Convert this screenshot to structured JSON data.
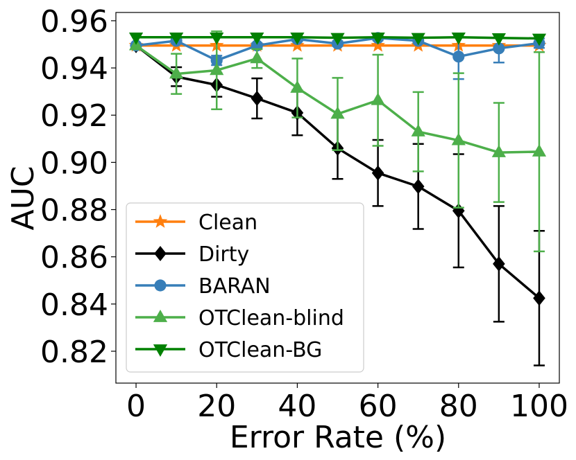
{
  "chart_data": {
    "type": "line",
    "title": "",
    "xlabel": "Error Rate (%)",
    "ylabel": "AUC",
    "xlim": [
      -5,
      105
    ],
    "ylim": [
      0.8065,
      0.9635
    ],
    "xticks": [
      0,
      20,
      40,
      60,
      80,
      100
    ],
    "yticks": [
      0.82,
      0.84,
      0.86,
      0.88,
      0.9,
      0.92,
      0.94,
      0.96
    ],
    "ytick_labels": [
      "0.82",
      "0.84",
      "0.86",
      "0.88",
      "0.90",
      "0.92",
      "0.94",
      "0.96"
    ],
    "grid": false,
    "legend_position": "lower-left",
    "x": [
      0,
      10,
      20,
      30,
      40,
      50,
      60,
      70,
      80,
      90,
      100
    ],
    "series": [
      {
        "name": "Clean",
        "color": "#ff7f0e",
        "marker": "star",
        "values": [
          0.9495,
          0.9495,
          0.9495,
          0.9495,
          0.9495,
          0.9495,
          0.9495,
          0.9495,
          0.9495,
          0.9495,
          0.9495
        ],
        "errors": [
          0,
          0,
          0,
          0,
          0,
          0,
          0,
          0,
          0,
          0,
          0
        ]
      },
      {
        "name": "Dirty",
        "color": "#000000",
        "marker": "diamond",
        "values": [
          0.9495,
          0.9363,
          0.9328,
          0.9271,
          0.921,
          0.906,
          0.8955,
          0.8898,
          0.8795,
          0.857,
          0.8425
        ],
        "errors": [
          0,
          0.004,
          0.005,
          0.0085,
          0.0095,
          0.013,
          0.014,
          0.018,
          0.024,
          0.0245,
          0.0285
        ]
      },
      {
        "name": "BARAN",
        "color": "#377eb8",
        "marker": "circle",
        "values": [
          0.9495,
          0.9515,
          0.9432,
          0.9495,
          0.9522,
          0.9503,
          0.9527,
          0.9515,
          0.9448,
          0.9483,
          0.9505
        ],
        "errors": [
          0,
          0.001,
          0.002,
          0.001,
          0.001,
          0.001,
          0.001,
          0.001,
          0.0095,
          0.006,
          0.002
        ]
      },
      {
        "name": "OTClean-blind",
        "color": "#4daf4a",
        "marker": "triangle-up",
        "values": [
          0.9495,
          0.9375,
          0.939,
          0.944,
          0.9315,
          0.9205,
          0.9263,
          0.913,
          0.9093,
          0.9042,
          0.9045
        ],
        "errors": [
          0,
          0.0085,
          0.0165,
          0.004,
          0.0125,
          0.0153,
          0.0193,
          0.0168,
          0.0285,
          0.021,
          0.0422
        ]
      },
      {
        "name": "OTClean-BG",
        "color": "#008000",
        "marker": "triangle-down",
        "values": [
          0.953,
          0.953,
          0.953,
          0.953,
          0.953,
          0.9528,
          0.953,
          0.9528,
          0.953,
          0.9527,
          0.9525
        ],
        "errors": [
          0,
          0,
          0,
          0,
          0,
          0,
          0,
          0,
          0,
          0,
          0
        ]
      }
    ]
  }
}
